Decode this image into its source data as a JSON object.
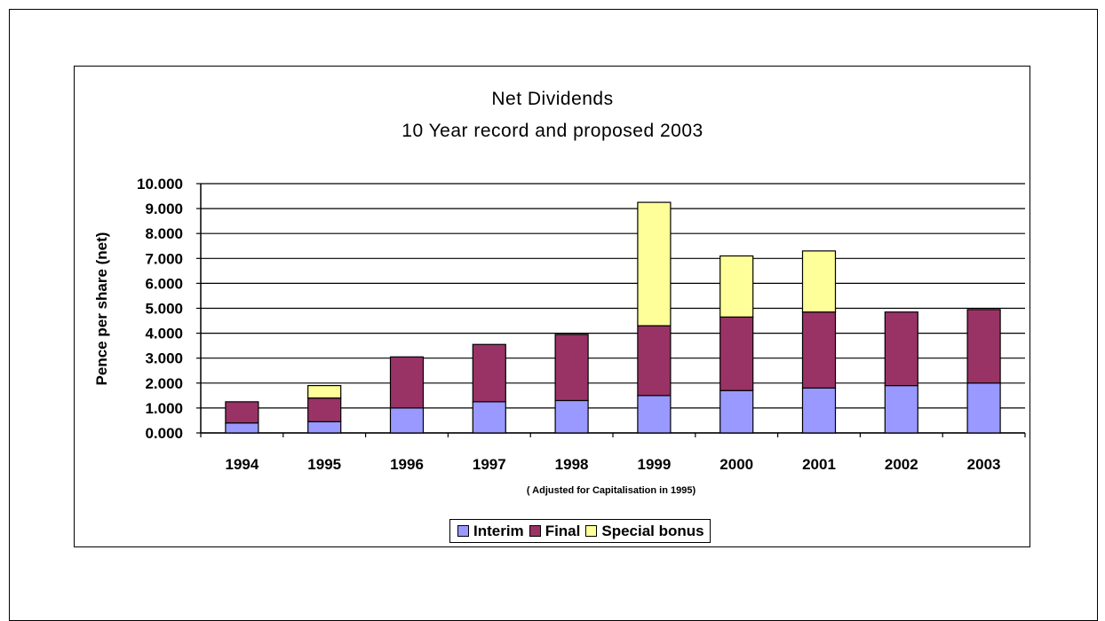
{
  "chart_data": {
    "type": "bar",
    "stacked": true,
    "title": "Net Dividends",
    "subtitle": "10 Year record and proposed 2003",
    "ylabel": "Pence per share (net)",
    "xlabel_note": "( Adjusted for Capitalisation in 1995)",
    "ylim": [
      0,
      10
    ],
    "yticks": [
      "0.000",
      "1.000",
      "2.000",
      "3.000",
      "4.000",
      "5.000",
      "6.000",
      "7.000",
      "8.000",
      "9.000",
      "10.000"
    ],
    "categories": [
      "1994",
      "1995",
      "1996",
      "1997",
      "1998",
      "1999",
      "2000",
      "2001",
      "2002",
      "2003"
    ],
    "series": [
      {
        "name": "Interim",
        "color": "#9999ff",
        "values": [
          0.4,
          0.45,
          1.0,
          1.25,
          1.3,
          1.5,
          1.7,
          1.8,
          1.9,
          2.0
        ]
      },
      {
        "name": "Final",
        "color": "#993366",
        "values": [
          0.85,
          0.95,
          2.05,
          2.3,
          2.65,
          2.8,
          2.95,
          3.05,
          2.95,
          2.95
        ]
      },
      {
        "name": "Special bonus",
        "color": "#ffff99",
        "values": [
          0,
          0.5,
          0,
          0,
          0,
          4.95,
          2.45,
          2.45,
          0,
          0
        ]
      }
    ],
    "grid": true,
    "legend_position": "bottom"
  }
}
